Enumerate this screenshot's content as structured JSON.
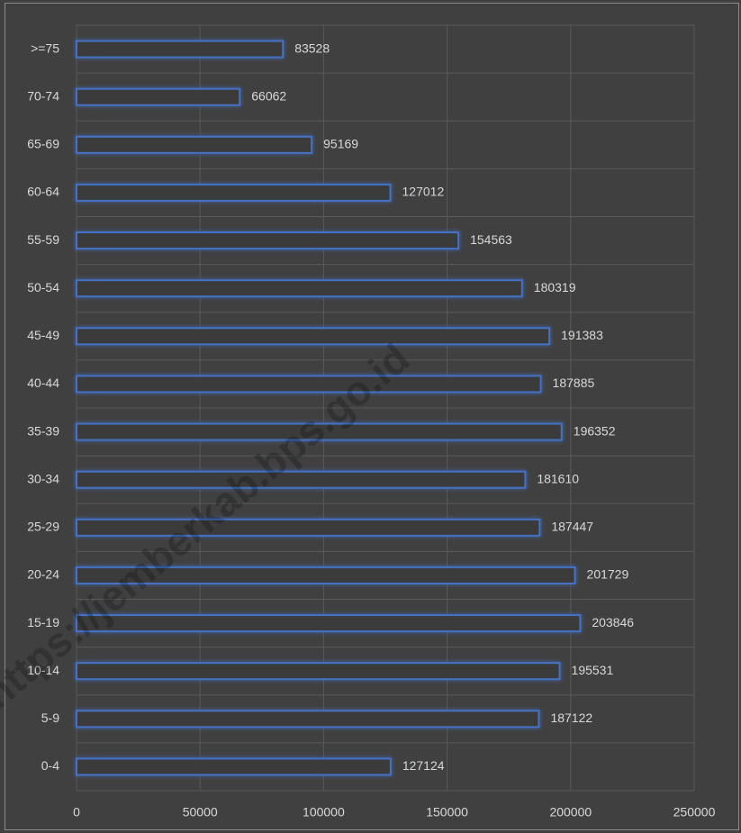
{
  "chart_data": {
    "type": "hbar",
    "categories": [
      ">=75",
      "70-74",
      "65-69",
      "60-64",
      "55-59",
      "50-54",
      "45-49",
      "40-44",
      "35-39",
      "30-34",
      "25-29",
      "20-24",
      "15-19",
      "10-14",
      "5-9",
      "0-4"
    ],
    "values": [
      83528,
      66062,
      95169,
      127012,
      154563,
      180319,
      191383,
      187885,
      196352,
      181610,
      187447,
      201729,
      203846,
      195531,
      187122,
      127124
    ],
    "color": "#4472c4",
    "xlim": [
      0,
      250000
    ],
    "xticks": [
      0,
      50000,
      100000,
      150000,
      200000,
      250000
    ],
    "grid": true,
    "watermark": "https://jemberkab.bps.go.id"
  }
}
